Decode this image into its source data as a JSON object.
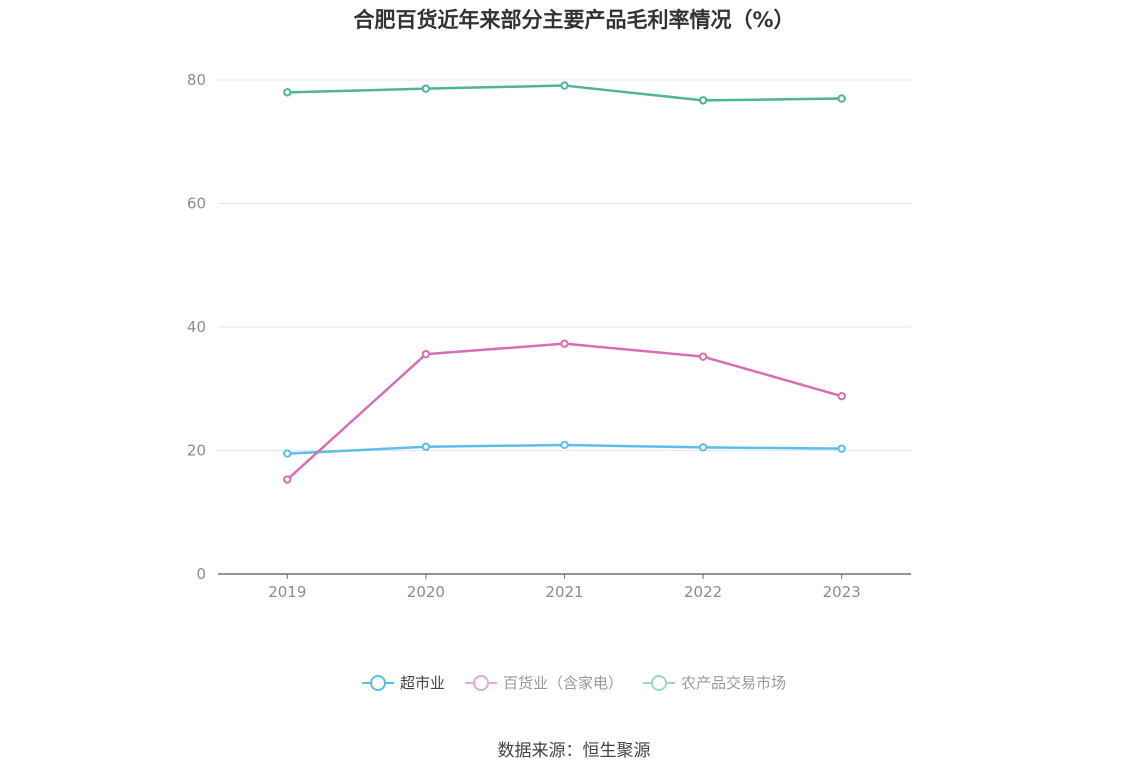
{
  "chart_data": {
    "type": "line",
    "title": "合肥百货近年来部分主要产品毛利率情况（%）",
    "x": [
      "2019",
      "2020",
      "2021",
      "2022",
      "2023"
    ],
    "ylim": [
      0,
      80
    ],
    "yticks": [
      0,
      20,
      40,
      60,
      80
    ],
    "grid": true,
    "legend_position": "bottom",
    "series": [
      {
        "name": "超市业",
        "color": "#5bbde8",
        "values": [
          19.5,
          20.6,
          20.9,
          20.5,
          20.3
        ]
      },
      {
        "name": "百货业（含家电）",
        "color": "#d96db5",
        "values": [
          15.3,
          35.6,
          37.3,
          35.2,
          28.8
        ]
      },
      {
        "name": "农产品交易市场",
        "color": "#4fb39a",
        "values": [
          78.0,
          78.6,
          79.1,
          76.7,
          77.0
        ]
      }
    ],
    "legend": [
      {
        "label": "超市业",
        "color": "#5bbde8",
        "active": true
      },
      {
        "label": "百货业（含家电）",
        "color": "#e8a8d2",
        "active": false
      },
      {
        "label": "农产品交易市场",
        "color": "#9fd6c8",
        "active": false
      }
    ]
  },
  "source": "数据来源：恒生聚源"
}
